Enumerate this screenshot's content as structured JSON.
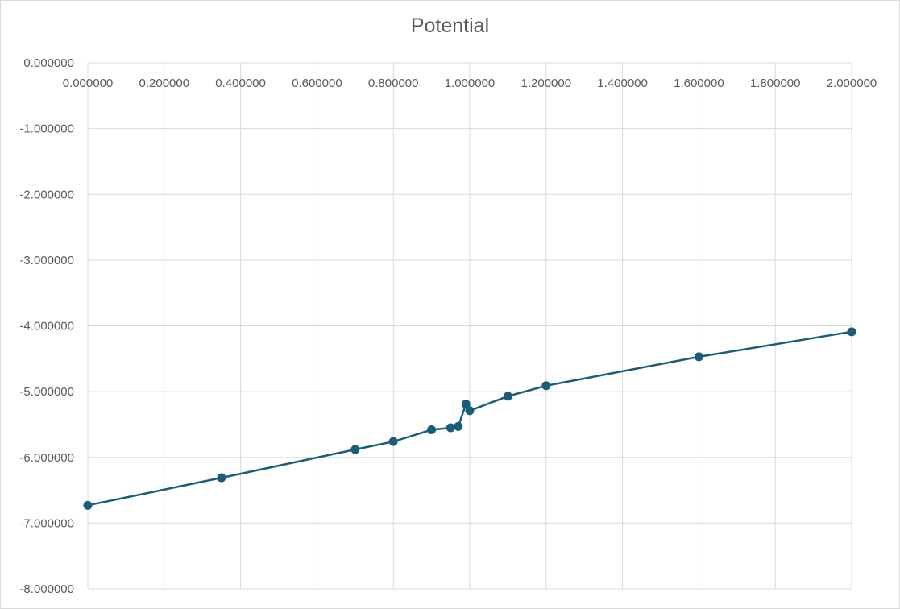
{
  "chart_data": {
    "type": "scatter",
    "title": "Potential",
    "xlabel": "",
    "ylabel": "",
    "xlim": [
      0,
      2
    ],
    "ylim": [
      -8,
      0
    ],
    "x_ticks": [
      "0.000000",
      "0.200000",
      "0.400000",
      "0.600000",
      "0.800000",
      "1.000000",
      "1.200000",
      "1.400000",
      "1.600000",
      "1.800000",
      "2.000000"
    ],
    "y_ticks": [
      "0.000000",
      "-1.000000",
      "-2.000000",
      "-3.000000",
      "-4.000000",
      "-5.000000",
      "-6.000000",
      "-7.000000",
      "-8.000000"
    ],
    "grid": true,
    "series": [
      {
        "color": "#1a5c7c",
        "points": [
          {
            "x": 0.0,
            "y": -6.73
          },
          {
            "x": 0.35,
            "y": -6.31
          },
          {
            "x": 0.7,
            "y": -5.88
          },
          {
            "x": 0.8,
            "y": -5.76
          },
          {
            "x": 0.9,
            "y": -5.58
          },
          {
            "x": 0.95,
            "y": -5.55
          },
          {
            "x": 0.97,
            "y": -5.53
          },
          {
            "x": 0.99,
            "y": -5.19
          },
          {
            "x": 1.0,
            "y": -5.29
          },
          {
            "x": 1.1,
            "y": -5.07
          },
          {
            "x": 1.2,
            "y": -4.91
          },
          {
            "x": 1.6,
            "y": -4.47
          },
          {
            "x": 2.0,
            "y": -4.09
          }
        ]
      }
    ]
  }
}
